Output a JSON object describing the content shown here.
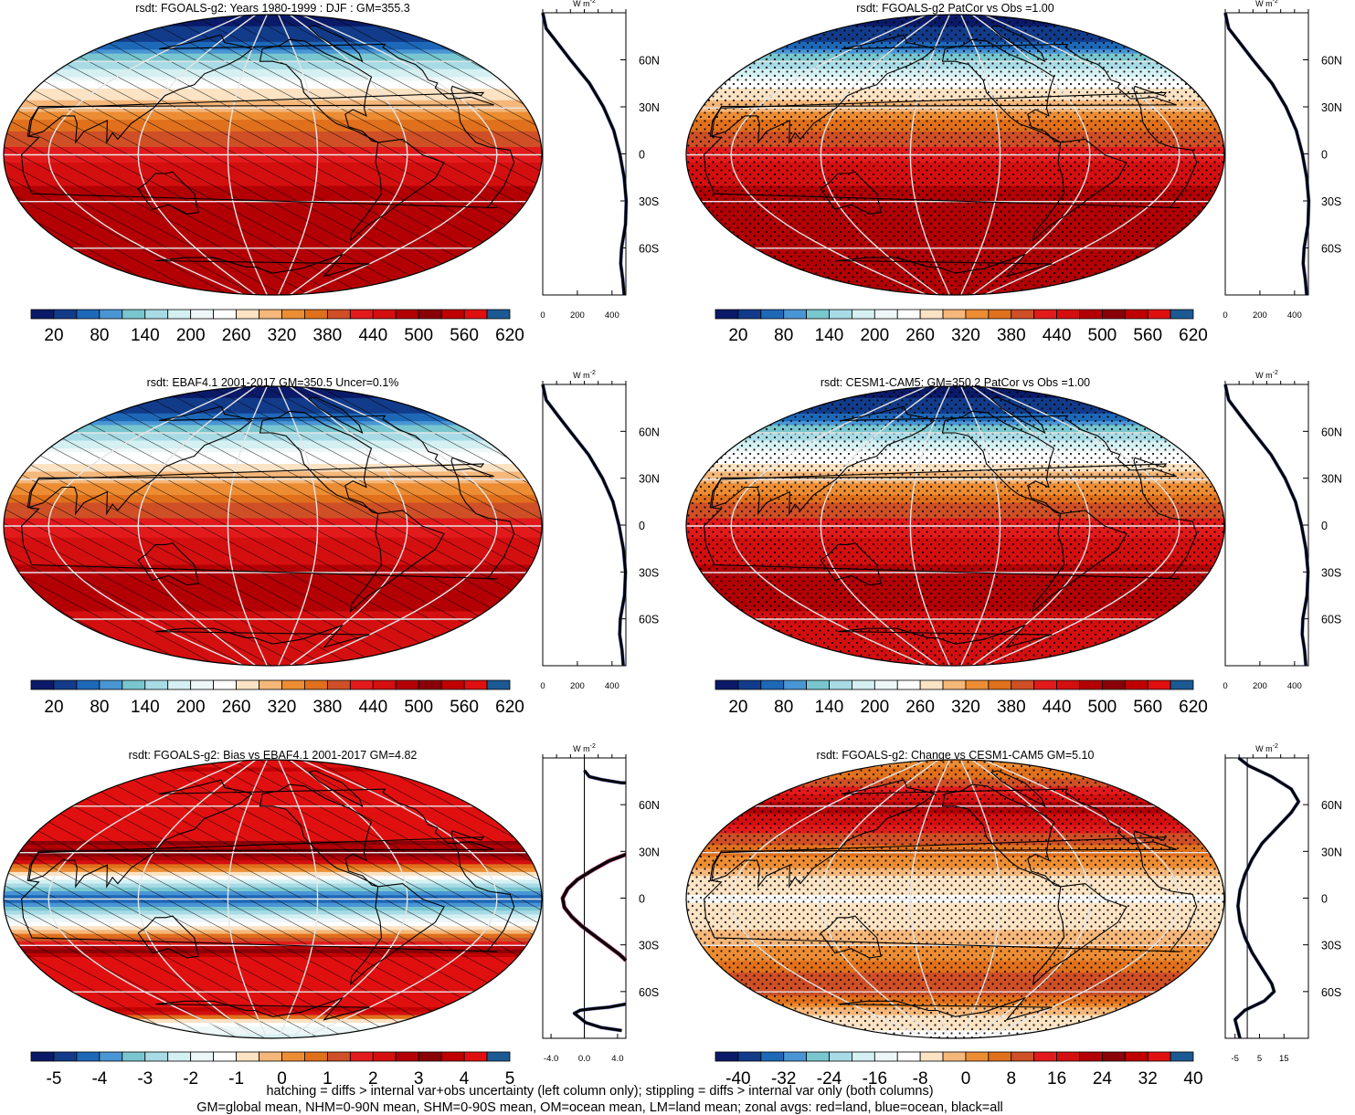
{
  "palette": [
    "#0b1a68",
    "#123b8a",
    "#1e68b8",
    "#4a95d4",
    "#79c6cf",
    "#a8dbe5",
    "#d4f0f3",
    "#eef7f8",
    "#ffffff",
    "#fbe3c4",
    "#f5b77a",
    "#ec8d34",
    "#e0701c",
    "#cf4f26",
    "#e31a1c",
    "#d40f10",
    "#b30005",
    "#8a0008",
    "#c00000",
    "#e01010",
    "#1c5a94"
  ],
  "colors": {
    "grid": "#e6e6e6",
    "land_line": "#000000",
    "profile_all": "#000000",
    "profile_land": "#e41a1c",
    "profile_ocean": "#1f3fbf"
  },
  "icons": {
    "map_pattern_hatch": "diagonal-hatch",
    "map_pattern_stipple": "dot-stipple"
  },
  "lat_ticks": [
    "60N",
    "30N",
    "0",
    "30S",
    "60S"
  ],
  "unit_label": "W m",
  "unit_exponent": "-2",
  "footer": {
    "line1": "hatching = diffs > internal var+obs uncertainty (left column only); stippling = diffs > internal var only (both columns)",
    "line2": "GM=global mean, NHM=0-90N mean, SHM=0-90S mean, OM=ocean mean, LM=land mean; zonal avgs: red=land, blue=ocean, black=all"
  },
  "chart_data": [
    {
      "type": "heatmap",
      "title": "rsdt: FGOALS-g2: Years 1980-1999 : DJF : GM=355.3",
      "pattern": "hatch",
      "colorbar_labels": [
        "20",
        "80",
        "140",
        "200",
        "260",
        "320",
        "380",
        "440",
        "500",
        "560",
        "620"
      ],
      "colorbar_range": [
        -10,
        650
      ],
      "field_by_lat": [
        {
          "lat": 90,
          "v": 0
        },
        {
          "lat": 75,
          "v": 40
        },
        {
          "lat": 60,
          "v": 150
        },
        {
          "lat": 45,
          "v": 270
        },
        {
          "lat": 30,
          "v": 345
        },
        {
          "lat": 15,
          "v": 420
        },
        {
          "lat": 0,
          "v": 470
        },
        {
          "lat": -15,
          "v": 510
        },
        {
          "lat": -30,
          "v": 530
        },
        {
          "lat": -45,
          "v": 530
        },
        {
          "lat": -60,
          "v": 520
        },
        {
          "lat": -75,
          "v": 520
        },
        {
          "lat": -90,
          "v": 520
        }
      ],
      "profile": {
        "xticks": [
          "0",
          "200",
          "400"
        ],
        "xlim": [
          0,
          480
        ],
        "points": [
          {
            "lat": 90,
            "v": 0
          },
          {
            "lat": 80,
            "v": 20
          },
          {
            "lat": 70,
            "v": 90
          },
          {
            "lat": 60,
            "v": 160
          },
          {
            "lat": 45,
            "v": 270
          },
          {
            "lat": 30,
            "v": 350
          },
          {
            "lat": 15,
            "v": 410
          },
          {
            "lat": 0,
            "v": 445
          },
          {
            "lat": -15,
            "v": 470
          },
          {
            "lat": -30,
            "v": 482
          },
          {
            "lat": -45,
            "v": 478
          },
          {
            "lat": -60,
            "v": 455
          },
          {
            "lat": -70,
            "v": 450
          },
          {
            "lat": -80,
            "v": 462
          },
          {
            "lat": -90,
            "v": 470
          }
        ]
      }
    },
    {
      "type": "heatmap",
      "title": "rsdt: FGOALS-g2 PatCor vs Obs =1.00",
      "pattern": "stipple",
      "colorbar_labels": [
        "20",
        "80",
        "140",
        "200",
        "260",
        "320",
        "380",
        "440",
        "500",
        "560",
        "620"
      ],
      "colorbar_range": [
        -10,
        650
      ],
      "field_by_lat": [
        {
          "lat": 90,
          "v": 0
        },
        {
          "lat": 75,
          "v": 40
        },
        {
          "lat": 60,
          "v": 150
        },
        {
          "lat": 45,
          "v": 270
        },
        {
          "lat": 30,
          "v": 345
        },
        {
          "lat": 15,
          "v": 420
        },
        {
          "lat": 0,
          "v": 470
        },
        {
          "lat": -15,
          "v": 510
        },
        {
          "lat": -30,
          "v": 530
        },
        {
          "lat": -45,
          "v": 530
        },
        {
          "lat": -60,
          "v": 520
        },
        {
          "lat": -75,
          "v": 520
        },
        {
          "lat": -90,
          "v": 520
        }
      ],
      "profile": {
        "xticks": [
          "0",
          "200",
          "400"
        ],
        "xlim": [
          0,
          480
        ],
        "points": [
          {
            "lat": 90,
            "v": 0
          },
          {
            "lat": 80,
            "v": 20
          },
          {
            "lat": 70,
            "v": 90
          },
          {
            "lat": 60,
            "v": 160
          },
          {
            "lat": 45,
            "v": 270
          },
          {
            "lat": 30,
            "v": 350
          },
          {
            "lat": 15,
            "v": 410
          },
          {
            "lat": 0,
            "v": 445
          },
          {
            "lat": -15,
            "v": 470
          },
          {
            "lat": -30,
            "v": 482
          },
          {
            "lat": -45,
            "v": 478
          },
          {
            "lat": -60,
            "v": 455
          },
          {
            "lat": -70,
            "v": 450
          },
          {
            "lat": -80,
            "v": 462
          },
          {
            "lat": -90,
            "v": 470
          }
        ]
      }
    },
    {
      "type": "heatmap",
      "title": "rsdt: EBAF4.1 2001-2017 GM=350.5 Uncer=0.1%",
      "pattern": "hatch",
      "colorbar_labels": [
        "20",
        "80",
        "140",
        "200",
        "260",
        "320",
        "380",
        "440",
        "500",
        "560",
        "620"
      ],
      "colorbar_range": [
        -10,
        650
      ],
      "field_by_lat": [
        {
          "lat": 90,
          "v": 0
        },
        {
          "lat": 75,
          "v": 40
        },
        {
          "lat": 60,
          "v": 150
        },
        {
          "lat": 45,
          "v": 265
        },
        {
          "lat": 30,
          "v": 340
        },
        {
          "lat": 15,
          "v": 415
        },
        {
          "lat": 0,
          "v": 465
        },
        {
          "lat": -15,
          "v": 505
        },
        {
          "lat": -30,
          "v": 525
        },
        {
          "lat": -45,
          "v": 525
        },
        {
          "lat": -60,
          "v": 515
        },
        {
          "lat": -75,
          "v": 515
        },
        {
          "lat": -90,
          "v": 515
        }
      ],
      "profile": {
        "xticks": [
          "0",
          "200",
          "400"
        ],
        "xlim": [
          0,
          480
        ],
        "points": [
          {
            "lat": 90,
            "v": 0
          },
          {
            "lat": 80,
            "v": 20
          },
          {
            "lat": 70,
            "v": 88
          },
          {
            "lat": 60,
            "v": 158
          },
          {
            "lat": 45,
            "v": 265
          },
          {
            "lat": 30,
            "v": 345
          },
          {
            "lat": 15,
            "v": 405
          },
          {
            "lat": 0,
            "v": 440
          },
          {
            "lat": -15,
            "v": 465
          },
          {
            "lat": -30,
            "v": 478
          },
          {
            "lat": -45,
            "v": 472
          },
          {
            "lat": -60,
            "v": 448
          },
          {
            "lat": -70,
            "v": 444
          },
          {
            "lat": -80,
            "v": 458
          },
          {
            "lat": -90,
            "v": 465
          }
        ]
      }
    },
    {
      "type": "heatmap",
      "title": "rsdt: CESM1-CAM5: GM=350.2 PatCor vs Obs =1.00",
      "pattern": "stipple",
      "colorbar_labels": [
        "20",
        "80",
        "140",
        "200",
        "260",
        "320",
        "380",
        "440",
        "500",
        "560",
        "620"
      ],
      "colorbar_range": [
        -10,
        650
      ],
      "field_by_lat": [
        {
          "lat": 90,
          "v": 0
        },
        {
          "lat": 75,
          "v": 40
        },
        {
          "lat": 60,
          "v": 150
        },
        {
          "lat": 45,
          "v": 265
        },
        {
          "lat": 30,
          "v": 340
        },
        {
          "lat": 15,
          "v": 415
        },
        {
          "lat": 0,
          "v": 465
        },
        {
          "lat": -15,
          "v": 505
        },
        {
          "lat": -30,
          "v": 525
        },
        {
          "lat": -45,
          "v": 525
        },
        {
          "lat": -60,
          "v": 515
        },
        {
          "lat": -75,
          "v": 515
        },
        {
          "lat": -90,
          "v": 515
        }
      ],
      "profile": {
        "xticks": [
          "0",
          "200",
          "400"
        ],
        "xlim": [
          0,
          480
        ],
        "points": [
          {
            "lat": 90,
            "v": 0
          },
          {
            "lat": 80,
            "v": 20
          },
          {
            "lat": 70,
            "v": 88
          },
          {
            "lat": 60,
            "v": 158
          },
          {
            "lat": 45,
            "v": 265
          },
          {
            "lat": 30,
            "v": 345
          },
          {
            "lat": 15,
            "v": 405
          },
          {
            "lat": 0,
            "v": 440
          },
          {
            "lat": -15,
            "v": 465
          },
          {
            "lat": -30,
            "v": 478
          },
          {
            "lat": -45,
            "v": 472
          },
          {
            "lat": -60,
            "v": 448
          },
          {
            "lat": -70,
            "v": 444
          },
          {
            "lat": -80,
            "v": 458
          },
          {
            "lat": -90,
            "v": 465
          }
        ]
      }
    },
    {
      "type": "heatmap",
      "title": "rsdt: FGOALS-g2: Bias vs EBAF4.1 2001-2017 GM=4.82",
      "pattern": "hatch",
      "colorbar_labels": [
        "-5",
        "-4",
        "-3",
        "-2",
        "-1",
        "0",
        "1",
        "2",
        "3",
        "4",
        "5"
      ],
      "colorbar_range": [
        -5.5,
        5.5
      ],
      "field_by_lat": [
        {
          "lat": 90,
          "v": 5.5
        },
        {
          "lat": 85,
          "v": 5.5
        },
        {
          "lat": 83,
          "v": 4.5
        },
        {
          "lat": 80,
          "v": 5.5
        },
        {
          "lat": 40,
          "v": 5.5
        },
        {
          "lat": 35,
          "v": 3.5
        },
        {
          "lat": 30,
          "v": 4.5
        },
        {
          "lat": 25,
          "v": 3.5
        },
        {
          "lat": 20,
          "v": 1.0
        },
        {
          "lat": 15,
          "v": -0.5
        },
        {
          "lat": 10,
          "v": -2.5
        },
        {
          "lat": 5,
          "v": -3.5
        },
        {
          "lat": 0,
          "v": -4.0
        },
        {
          "lat": -5,
          "v": -3.5
        },
        {
          "lat": -10,
          "v": -2.5
        },
        {
          "lat": -15,
          "v": -1.0
        },
        {
          "lat": -20,
          "v": 0.2
        },
        {
          "lat": -25,
          "v": 1.5
        },
        {
          "lat": -30,
          "v": 3.0
        },
        {
          "lat": -35,
          "v": 4.5
        },
        {
          "lat": -40,
          "v": 5.5
        },
        {
          "lat": -70,
          "v": 5.5
        },
        {
          "lat": -73,
          "v": 3.5
        },
        {
          "lat": -78,
          "v": 0.0
        },
        {
          "lat": -85,
          "v": -1.5
        },
        {
          "lat": -90,
          "v": -2.0
        }
      ],
      "profile": {
        "xticks": [
          "-4.0",
          "0.0",
          "4.0"
        ],
        "xlim": [
          -5,
          5
        ],
        "points": [
          {
            "lat": 82,
            "v": 0.0
          },
          {
            "lat": 78,
            "v": 0.6
          },
          {
            "lat": 76,
            "v": 2.2
          },
          {
            "lat": 74,
            "v": 4.5
          },
          {
            "lat": 74,
            "v": 5.0
          }
        ],
        "points2": [
          {
            "lat": 28,
            "v": 5.0
          },
          {
            "lat": 24,
            "v": 3.0
          },
          {
            "lat": 18,
            "v": 1.0
          },
          {
            "lat": 12,
            "v": -0.8
          },
          {
            "lat": 6,
            "v": -2.0
          },
          {
            "lat": 0,
            "v": -2.6
          },
          {
            "lat": -6,
            "v": -2.4
          },
          {
            "lat": -12,
            "v": -1.5
          },
          {
            "lat": -18,
            "v": -0.3
          },
          {
            "lat": -24,
            "v": 1.2
          },
          {
            "lat": -30,
            "v": 2.7
          },
          {
            "lat": -36,
            "v": 4.2
          },
          {
            "lat": -40,
            "v": 5.0
          }
        ],
        "points3": [
          {
            "lat": -68,
            "v": 5.0
          },
          {
            "lat": -70,
            "v": 3.0
          },
          {
            "lat": -71,
            "v": 1.0
          },
          {
            "lat": -72,
            "v": -0.5
          },
          {
            "lat": -74,
            "v": -1.2
          },
          {
            "lat": -77,
            "v": -0.5
          },
          {
            "lat": -80,
            "v": 0.2
          },
          {
            "lat": -83,
            "v": 2.0
          },
          {
            "lat": -85,
            "v": 4.5
          }
        ]
      }
    },
    {
      "type": "heatmap",
      "title": "rsdt: FGOALS-g2: Change vs CESM1-CAM5 GM=5.10",
      "pattern": "stipple",
      "colorbar_labels": [
        "-40",
        "-32",
        "-24",
        "-16",
        "-8",
        "0",
        "8",
        "16",
        "24",
        "32",
        "40"
      ],
      "colorbar_range": [
        -44,
        44
      ],
      "field_by_lat": [
        {
          "lat": 90,
          "v": 6
        },
        {
          "lat": 80,
          "v": 12
        },
        {
          "lat": 70,
          "v": 20
        },
        {
          "lat": 60,
          "v": 30
        },
        {
          "lat": 50,
          "v": 24
        },
        {
          "lat": 40,
          "v": 16
        },
        {
          "lat": 30,
          "v": 10
        },
        {
          "lat": 20,
          "v": 4
        },
        {
          "lat": 10,
          "v": -3
        },
        {
          "lat": 0,
          "v": -5
        },
        {
          "lat": -10,
          "v": -3
        },
        {
          "lat": -20,
          "v": 0
        },
        {
          "lat": -30,
          "v": 4
        },
        {
          "lat": -40,
          "v": 9
        },
        {
          "lat": -50,
          "v": 14
        },
        {
          "lat": -58,
          "v": 18
        },
        {
          "lat": -65,
          "v": 12
        },
        {
          "lat": -72,
          "v": 2
        },
        {
          "lat": -80,
          "v": -4
        },
        {
          "lat": -90,
          "v": -5
        }
      ],
      "profile": {
        "xticks": [
          "-5",
          "5",
          "15"
        ],
        "xlim": [
          -9,
          25
        ],
        "points": [
          {
            "lat": 90,
            "v": -3.5
          },
          {
            "lat": 85,
            "v": 0.5
          },
          {
            "lat": 78,
            "v": 10
          },
          {
            "lat": 70,
            "v": 18
          },
          {
            "lat": 62,
            "v": 21
          },
          {
            "lat": 55,
            "v": 18
          },
          {
            "lat": 45,
            "v": 12
          },
          {
            "lat": 35,
            "v": 6
          },
          {
            "lat": 25,
            "v": 2
          },
          {
            "lat": 15,
            "v": -1
          },
          {
            "lat": 5,
            "v": -3
          },
          {
            "lat": -5,
            "v": -3.8
          },
          {
            "lat": -15,
            "v": -3
          },
          {
            "lat": -25,
            "v": -1
          },
          {
            "lat": -35,
            "v": 2
          },
          {
            "lat": -45,
            "v": 6
          },
          {
            "lat": -55,
            "v": 10
          },
          {
            "lat": -60,
            "v": 11
          },
          {
            "lat": -66,
            "v": 7
          },
          {
            "lat": -72,
            "v": -1
          },
          {
            "lat": -78,
            "v": -5
          },
          {
            "lat": -84,
            "v": -4
          },
          {
            "lat": -90,
            "v": -3
          }
        ]
      }
    }
  ]
}
